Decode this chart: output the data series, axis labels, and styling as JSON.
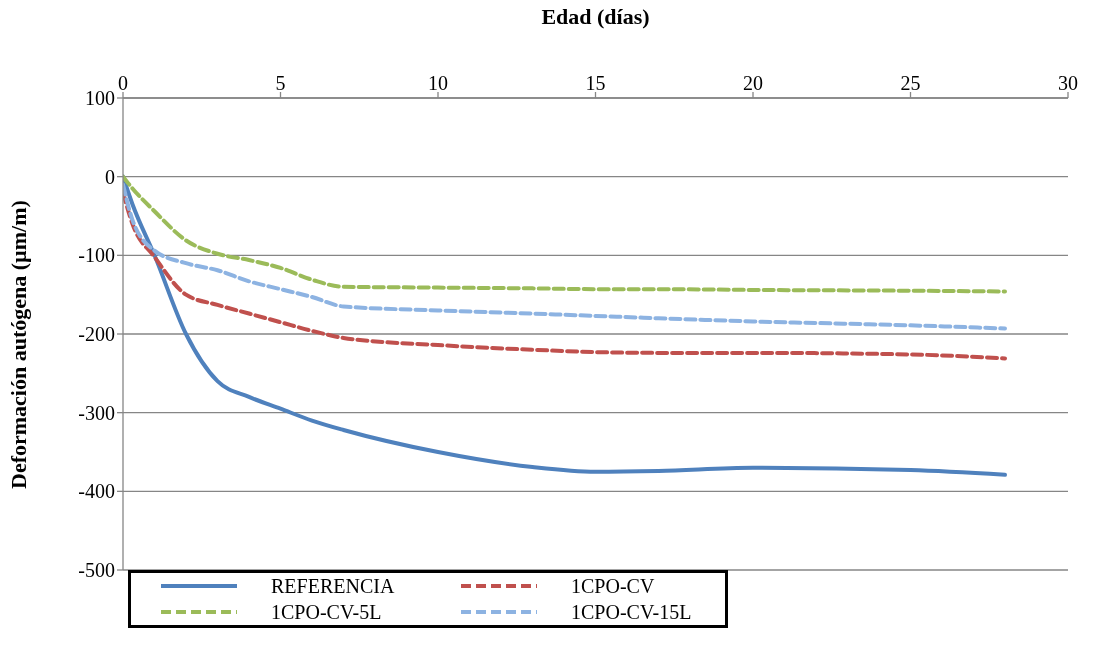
{
  "chart_data": {
    "type": "line",
    "xlabel": "Edad (días)",
    "ylabel": "Deformación autógena (µm/m)",
    "x": [
      0,
      0.3,
      1,
      2,
      3,
      4,
      5,
      6,
      7,
      10,
      13,
      15,
      17,
      20,
      25,
      28
    ],
    "series": [
      {
        "name": "REFERENCIA",
        "color": "#4f81bd",
        "line_style": "solid",
        "values": [
          0,
          -35,
          -100,
          -200,
          -260,
          -280,
          -295,
          -310,
          -322,
          -350,
          -369,
          -375,
          -374,
          -370,
          -373,
          -379
        ]
      },
      {
        "name": "1CPO-CV",
        "color": "#c0504d",
        "line_style": "dashed",
        "values": [
          -20,
          -60,
          -102,
          -150,
          -163,
          -174,
          -185,
          -196,
          -205,
          -214,
          -220,
          -223,
          -224,
          -224,
          -226,
          -231
        ]
      },
      {
        "name": "1CPO-CV-5L",
        "color": "#9bbb59",
        "line_style": "dashed",
        "values": [
          0,
          -15,
          -44,
          -81,
          -98,
          -106,
          -116,
          -131,
          -140,
          -141,
          -142,
          -143,
          -143,
          -144,
          -145,
          -146
        ]
      },
      {
        "name": "1CPO-CV-15L",
        "color": "#8db3e2",
        "line_style": "dashed",
        "values": [
          -10,
          -55,
          -94,
          -110,
          -119,
          -133,
          -143,
          -153,
          -165,
          -170,
          -174,
          -177,
          -180,
          -184,
          -189,
          -193
        ]
      }
    ],
    "xlim": [
      0,
      30
    ],
    "xticks": [
      0,
      5,
      10,
      15,
      20,
      25,
      30
    ],
    "ylim": [
      -500,
      100
    ],
    "yticks": [
      -500,
      -400,
      -300,
      -200,
      -100,
      0,
      100
    ],
    "grid": "y",
    "legend": "bottom left",
    "marker": "none"
  }
}
